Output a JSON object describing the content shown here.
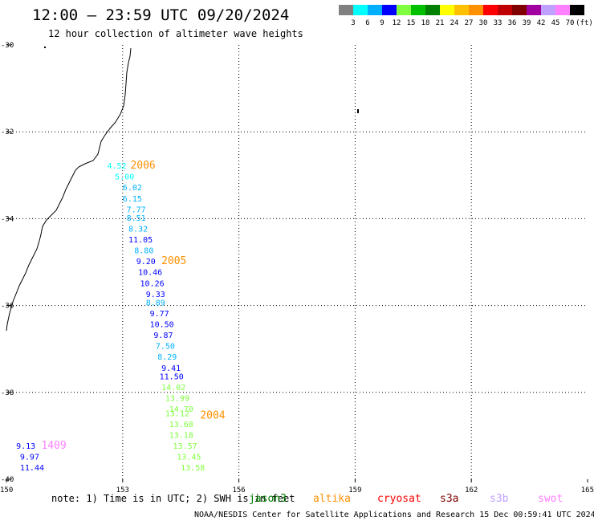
{
  "title": "12:00 – 23:59 UTC 09/20/2024",
  "subtitle": "12 hour collection of altimeter wave heights",
  "legend": {
    "colors": [
      "#808080",
      "#00ffff",
      "#00b0ff",
      "#0000ff",
      "#80ff40",
      "#00c000",
      "#008000",
      "#ffff00",
      "#ffc000",
      "#ff9000",
      "#ff0000",
      "#c00000",
      "#800000",
      "#a000a0",
      "#c0a0ff",
      "#ff80ff",
      "#000000"
    ],
    "labels": [
      "3",
      "6",
      "9",
      "12",
      "15",
      "18",
      "21",
      "24",
      "27",
      "30",
      "33",
      "36",
      "39",
      "42",
      "45",
      "70",
      "(ft)"
    ]
  },
  "note": "note:  1) Time is in UTC; 2) SWH is in feet",
  "satellites": [
    {
      "name": "jason3",
      "color": "#008000"
    },
    {
      "name": "altika",
      "color": "#ff9000"
    },
    {
      "name": "cryosat",
      "color": "#ff0000"
    },
    {
      "name": "s3a",
      "color": "#800000"
    },
    {
      "name": "s3b",
      "color": "#c0a0ff"
    },
    {
      "name": "swot",
      "color": "#ff80ff"
    }
  ],
  "credit": "NOAA/NESDIS Center for Satellite Applications and Research    15 Dec 00:59:41 UTC 2024",
  "chart_data": {
    "type": "scatter",
    "title": "12:00 – 23:59 UTC 09/20/2024",
    "subtitle": "12 hour collection of altimeter wave heights",
    "xlabel": "",
    "ylabel": "",
    "xlim": [
      150,
      165
    ],
    "ylim": [
      -40,
      -30
    ],
    "x_ticks": [
      "150",
      "153",
      "156",
      "159",
      "162",
      "165"
    ],
    "y_ticks": [
      "-30",
      "-32",
      "-34",
      "-36",
      "-38",
      "-40"
    ],
    "grid": "dotted",
    "units": "ft",
    "points": [
      {
        "lon": 152.6,
        "lat": -32.85,
        "v": "4.52",
        "c": "#00ffff"
      },
      {
        "lon": 152.8,
        "lat": -33.1,
        "v": "5.00",
        "c": "#00ffff"
      },
      {
        "lon": 153.0,
        "lat": -33.35,
        "v": "6.02",
        "c": "#00b0ff"
      },
      {
        "lon": 153.0,
        "lat": -33.6,
        "v": "6.15",
        "c": "#00b0ff"
      },
      {
        "lon": 153.1,
        "lat": -33.85,
        "v": "7.77",
        "c": "#00b0ff"
      },
      {
        "lon": 153.1,
        "lat": -34.05,
        "v": "8.51",
        "c": "#00b0ff"
      },
      {
        "lon": 153.15,
        "lat": -34.3,
        "v": "8.32",
        "c": "#00b0ff"
      },
      {
        "lon": 153.15,
        "lat": -34.55,
        "v": "11.05",
        "c": "#0000ff"
      },
      {
        "lon": 153.3,
        "lat": -34.8,
        "v": "8.80",
        "c": "#00b0ff"
      },
      {
        "lon": 153.35,
        "lat": -35.05,
        "v": "9.20",
        "c": "#0000ff"
      },
      {
        "lon": 153.4,
        "lat": -35.3,
        "v": "10.46",
        "c": "#0000ff"
      },
      {
        "lon": 153.45,
        "lat": -35.55,
        "v": "10.26",
        "c": "#0000ff"
      },
      {
        "lon": 153.6,
        "lat": -35.8,
        "v": "9.33",
        "c": "#0000ff"
      },
      {
        "lon": 153.6,
        "lat": -36.0,
        "v": "8.89",
        "c": "#00b0ff"
      },
      {
        "lon": 153.7,
        "lat": -36.25,
        "v": "9.77",
        "c": "#0000ff"
      },
      {
        "lon": 153.7,
        "lat": -36.5,
        "v": "10.50",
        "c": "#0000ff"
      },
      {
        "lon": 153.8,
        "lat": -36.75,
        "v": "9.87",
        "c": "#0000ff"
      },
      {
        "lon": 153.85,
        "lat": -37.0,
        "v": "7.50",
        "c": "#00b0ff"
      },
      {
        "lon": 153.9,
        "lat": -37.25,
        "v": "8.29",
        "c": "#00b0ff"
      },
      {
        "lon": 154.0,
        "lat": -37.5,
        "v": "9.41",
        "c": "#0000ff"
      },
      {
        "lon": 153.95,
        "lat": -37.7,
        "v": "11.50",
        "c": "#0000ff"
      },
      {
        "lon": 154.0,
        "lat": -37.95,
        "v": "14.02",
        "c": "#80ff40"
      },
      {
        "lon": 154.1,
        "lat": -38.2,
        "v": "13.99",
        "c": "#80ff40"
      },
      {
        "lon": 154.2,
        "lat": -38.45,
        "v": "14.70",
        "c": "#80ff40"
      },
      {
        "lon": 154.1,
        "lat": -38.55,
        "v": "13.12",
        "c": "#80ff40"
      },
      {
        "lon": 154.2,
        "lat": -38.8,
        "v": "13.68",
        "c": "#80ff40"
      },
      {
        "lon": 154.2,
        "lat": -39.05,
        "v": "13.18",
        "c": "#80ff40"
      },
      {
        "lon": 154.3,
        "lat": -39.3,
        "v": "13.57",
        "c": "#80ff40"
      },
      {
        "lon": 154.4,
        "lat": -39.55,
        "v": "13.45",
        "c": "#80ff40"
      },
      {
        "lon": 154.5,
        "lat": -39.8,
        "v": "13.58",
        "c": "#80ff40"
      },
      {
        "lon": 150.25,
        "lat": -39.3,
        "v": "9.13",
        "c": "#0000ff"
      },
      {
        "lon": 150.35,
        "lat": -39.55,
        "v": "9.97",
        "c": "#0000ff"
      },
      {
        "lon": 150.35,
        "lat": -39.8,
        "v": "11.44",
        "c": "#0000ff"
      }
    ],
    "track_labels": [
      {
        "text": "2006",
        "lon": 153.2,
        "lat": -32.85,
        "color": "#ff9000"
      },
      {
        "text": "2005",
        "lon": 154.0,
        "lat": -35.05,
        "color": "#ff9000"
      },
      {
        "text": "2004",
        "lon": 155.0,
        "lat": -38.6,
        "color": "#ff9000"
      },
      {
        "text": "1409",
        "lon": 150.9,
        "lat": -39.3,
        "color": "#ff80ff"
      }
    ]
  }
}
